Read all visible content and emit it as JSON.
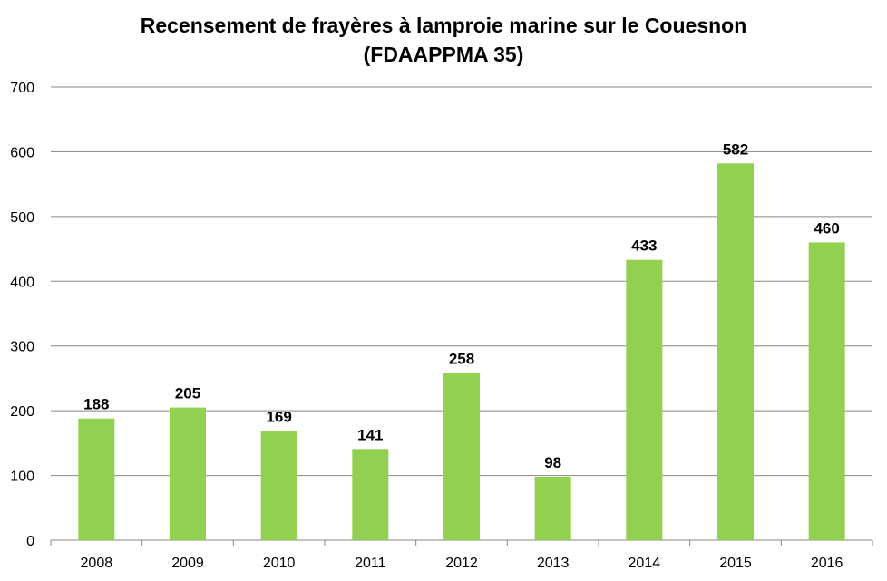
{
  "chart_data": {
    "type": "bar",
    "title_line1": "Recensement de frayères à lamproie marine sur le Couesnon",
    "title_line2": "(FDAAPPMA 35)",
    "categories": [
      "2008",
      "2009",
      "2010",
      "2011",
      "2012",
      "2013",
      "2014",
      "2015",
      "2016"
    ],
    "values": [
      188,
      205,
      169,
      141,
      258,
      98,
      433,
      582,
      460
    ],
    "data_labels": [
      "188",
      "205",
      "169",
      "141",
      "258",
      "98",
      "433",
      "582",
      "460"
    ],
    "xlabel": "",
    "ylabel": "",
    "ylim": [
      0,
      700
    ],
    "yticks": [
      0,
      100,
      200,
      300,
      400,
      500,
      600,
      700
    ],
    "ytick_labels": [
      "0",
      "100",
      "200",
      "300",
      "400",
      "500",
      "600",
      "700"
    ],
    "grid": true,
    "legend": "none",
    "bar_color": "#92d050",
    "grid_color": "#868686"
  }
}
